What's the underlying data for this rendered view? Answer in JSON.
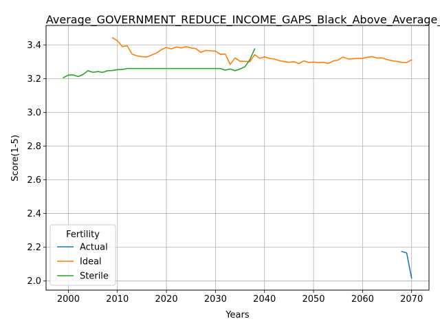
{
  "chart_data": {
    "type": "line",
    "title": "Average_GOVERNMENT_REDUCE_INCOME_GAPS_Black_Above_Average_I",
    "xlabel": "Years",
    "ylabel": "Score(1-5)",
    "xlim": [
      1995.45,
      2073.55
    ],
    "ylim": [
      1.9458,
      3.5153
    ],
    "xticks": [
      2000,
      2010,
      2020,
      2030,
      2040,
      2050,
      2060,
      2070
    ],
    "yticks": [
      2.0,
      2.2,
      2.4,
      2.6,
      2.8,
      3.0,
      3.2,
      3.4
    ],
    "grid": true,
    "legend": {
      "title": "Fertility",
      "placement": "lower-left"
    },
    "series": [
      {
        "name": "Actual",
        "color": "#1f77b4",
        "x": [
          2068,
          2069,
          2070
        ],
        "y": [
          2.175,
          2.166,
          2.017
        ]
      },
      {
        "name": "Ideal",
        "color": "#ff7f0e",
        "x": [
          2009,
          2010,
          2011,
          2012,
          2013,
          2014,
          2015,
          2016,
          2017,
          2018,
          2019,
          2020,
          2021,
          2022,
          2023,
          2024,
          2025,
          2026,
          2027,
          2028,
          2029,
          2030,
          2031,
          2032,
          2033,
          2034,
          2035,
          2036,
          2037,
          2038,
          2039,
          2040,
          2041,
          2042,
          2043,
          2044,
          2045,
          2046,
          2047,
          2048,
          2049,
          2050,
          2051,
          2052,
          2053,
          2054,
          2055,
          2056,
          2057,
          2058,
          2059,
          2060,
          2061,
          2062,
          2063,
          2064,
          2065,
          2066,
          2067,
          2068,
          2069,
          2070
        ],
        "y": [
          3.442,
          3.425,
          3.39,
          3.395,
          3.345,
          3.335,
          3.33,
          3.328,
          3.34,
          3.352,
          3.372,
          3.385,
          3.376,
          3.388,
          3.382,
          3.39,
          3.382,
          3.378,
          3.356,
          3.367,
          3.365,
          3.363,
          3.344,
          3.346,
          3.284,
          3.323,
          3.303,
          3.302,
          3.3,
          3.342,
          3.32,
          3.329,
          3.32,
          3.316,
          3.307,
          3.301,
          3.297,
          3.3,
          3.289,
          3.305,
          3.296,
          3.298,
          3.295,
          3.297,
          3.29,
          3.304,
          3.31,
          3.328,
          3.317,
          3.317,
          3.32,
          3.32,
          3.327,
          3.33,
          3.322,
          3.323,
          3.313,
          3.306,
          3.302,
          3.296,
          3.295,
          3.311
        ]
      },
      {
        "name": "Sterile",
        "color": "#2ca02c",
        "x": [
          1999,
          2000,
          2001,
          2002,
          2003,
          2004,
          2005,
          2006,
          2007,
          2008,
          2009,
          2010,
          2011,
          2012,
          2013,
          2014,
          2015,
          2016,
          2017,
          2018,
          2019,
          2020,
          2021,
          2022,
          2023,
          2024,
          2025,
          2026,
          2027,
          2028,
          2029,
          2030,
          2031,
          2032,
          2033,
          2034,
          2035,
          2036,
          2037,
          2038
        ],
        "y": [
          3.206,
          3.221,
          3.222,
          3.212,
          3.225,
          3.247,
          3.237,
          3.242,
          3.237,
          3.247,
          3.248,
          3.253,
          3.254,
          3.26,
          3.26,
          3.26,
          3.26,
          3.26,
          3.26,
          3.26,
          3.26,
          3.26,
          3.26,
          3.26,
          3.26,
          3.26,
          3.26,
          3.26,
          3.26,
          3.26,
          3.26,
          3.26,
          3.26,
          3.25,
          3.257,
          3.247,
          3.257,
          3.27,
          3.312,
          3.376
        ]
      }
    ]
  }
}
